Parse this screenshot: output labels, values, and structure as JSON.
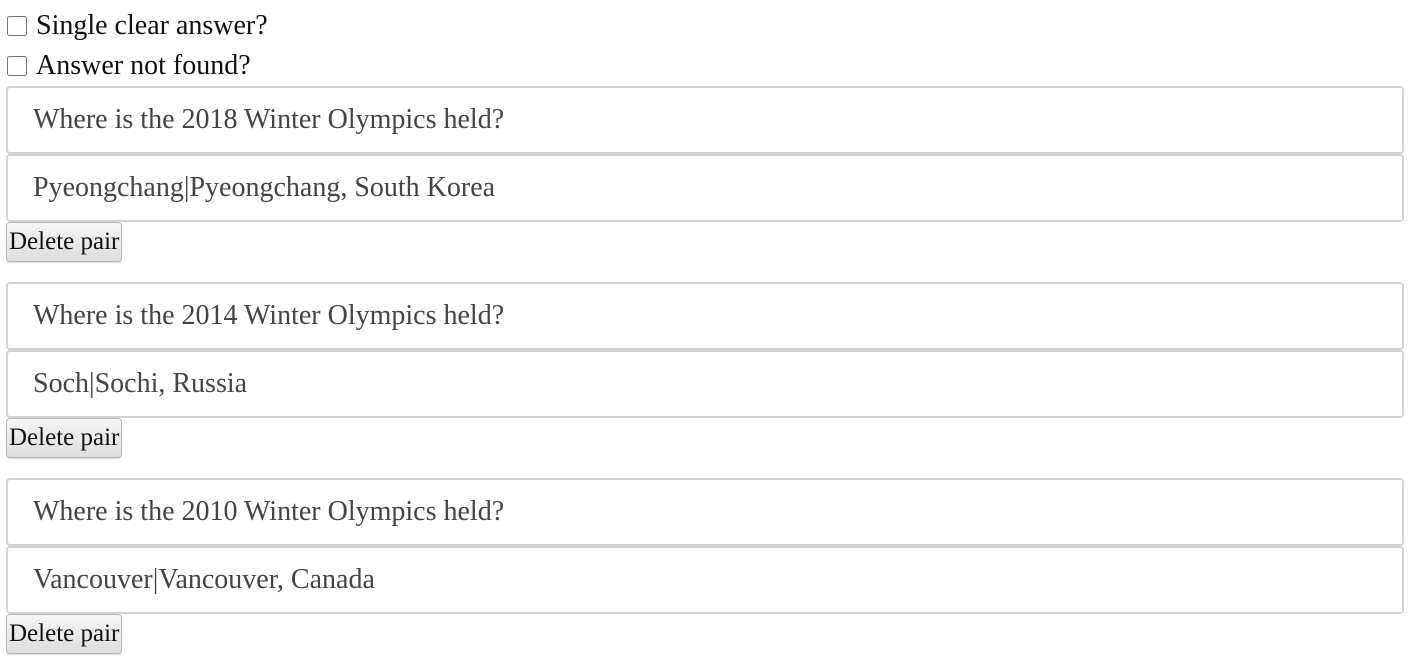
{
  "options": {
    "single_clear_answer_label": "Single clear answer?",
    "answer_not_found_label": "Answer not found?"
  },
  "pairs": [
    {
      "question": "Where is the 2018 Winter Olympics held?",
      "answer": "Pyeongchang|Pyeongchang, South Korea",
      "delete_label": "Delete pair"
    },
    {
      "question": "Where is the 2014 Winter Olympics held?",
      "answer": "Soch|Sochi, Russia",
      "delete_label": "Delete pair"
    },
    {
      "question": "Where is the 2010 Winter Olympics held?",
      "answer": "Vancouver|Vancouver, Canada",
      "delete_label": "Delete pair"
    }
  ]
}
